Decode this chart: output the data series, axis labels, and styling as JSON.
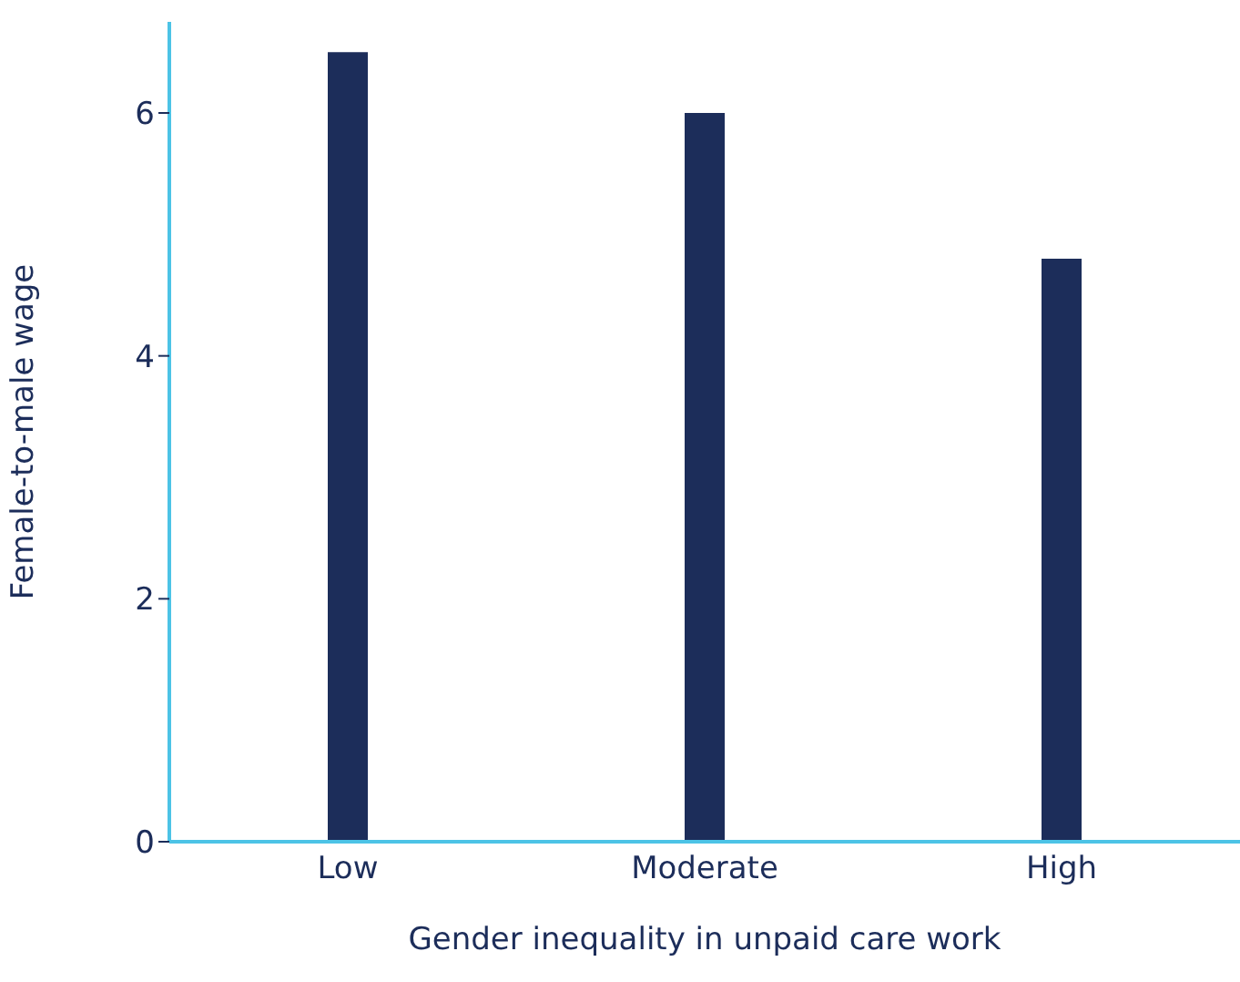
{
  "chart_data": {
    "type": "bar",
    "xlabel": "Gender inequality in unpaid care work",
    "ylabel": "Female-to-male wage",
    "categories": [
      "Low",
      "Moderate",
      "High"
    ],
    "values": [
      6.5,
      6.0,
      4.8
    ],
    "color": "#1c2d5a",
    "ylim": [
      0,
      6.75
    ],
    "yticks": [
      0,
      2,
      4,
      6
    ],
    "grid": false,
    "legend": false
  }
}
